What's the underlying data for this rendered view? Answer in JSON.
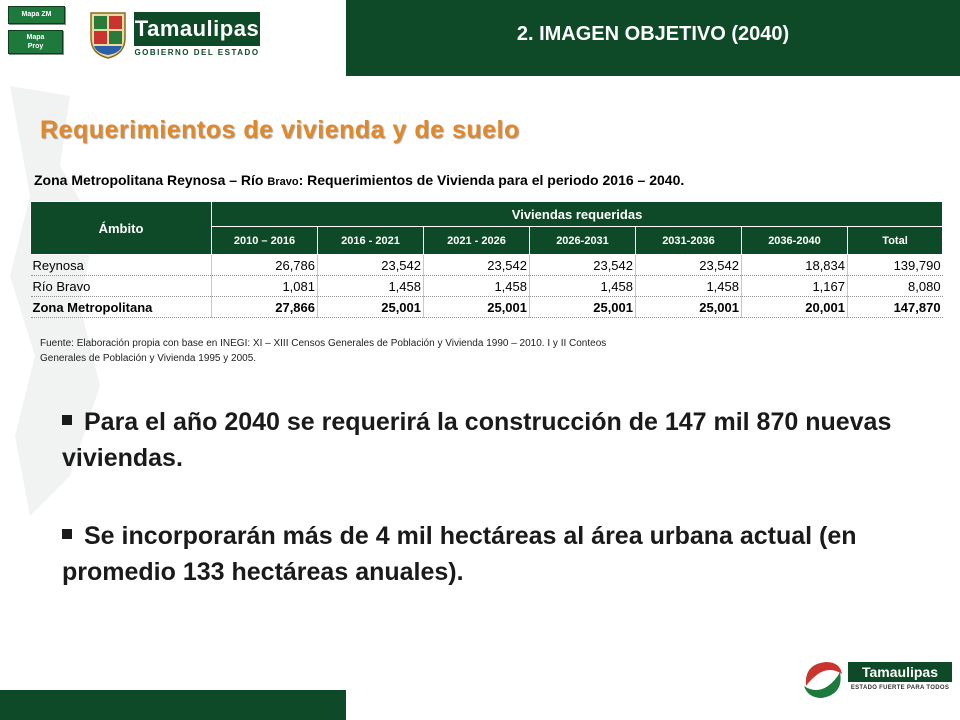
{
  "header": {
    "title": "2. IMAGEN OBJETIVO (2040)",
    "logo_text": "Tamaulipas",
    "logo_subtitle": "GOBIERNO DEL ESTADO",
    "nav_buttons": [
      {
        "label": "Mapa ZM"
      },
      {
        "label_line1": "Mapa",
        "label_line2": "Proy"
      }
    ]
  },
  "main": {
    "title": "Requerimientos de vivienda y de suelo",
    "subtitle_part1": "Zona Metropolitana Reynosa – Río ",
    "subtitle_part2": "Bravo",
    "subtitle_part3": ": Requerimientos de Vivienda para el periodo 2016 – 2040."
  },
  "table": {
    "header_ambito": "Ámbito",
    "header_group": "Viviendas requeridas",
    "columns": [
      "2010 – 2016",
      "2016 - 2021",
      "2021 - 2026",
      "2026-2031",
      "2031-2036",
      "2036-2040",
      "Total"
    ],
    "rows": [
      {
        "name": "Reynosa",
        "values": [
          "26,786",
          "23,542",
          "23,542",
          "23,542",
          "23,542",
          "18,834",
          "139,790"
        ]
      },
      {
        "name": "Río Bravo",
        "values": [
          "1,081",
          "1,458",
          "1,458",
          "1,458",
          "1,458",
          "1,167",
          "8,080"
        ]
      },
      {
        "name": "Zona Metropolitana",
        "values": [
          "27,866",
          "25,001",
          "25,001",
          "25,001",
          "25,001",
          "20,001",
          "147,870"
        ]
      }
    ]
  },
  "source": {
    "line1": "Fuente: Elaboración propia con base en INEGI:  XI – XIII Censos Generales  de Población y Vivienda 1990 – 2010. I y II Conteos",
    "line2": "Generales   de Población y Vivienda 1995 y 2005."
  },
  "bullets": [
    {
      "text": "Para el año 2040 se requerirá la construcción de 147 mil 870 nuevas viviendas."
    },
    {
      "text": "Se incorporarán más de 4 mil hectáreas al área urbana actual (en promedio 133 hectáreas anuales)."
    }
  ],
  "footer": {
    "logo_text": "Tamaulipas",
    "slogan": "ESTADO FUERTE PARA TODOS"
  },
  "colors": {
    "brand_green": "#0f4a28",
    "title_orange": "#e0882a",
    "button_green": "#1e7a3c"
  }
}
